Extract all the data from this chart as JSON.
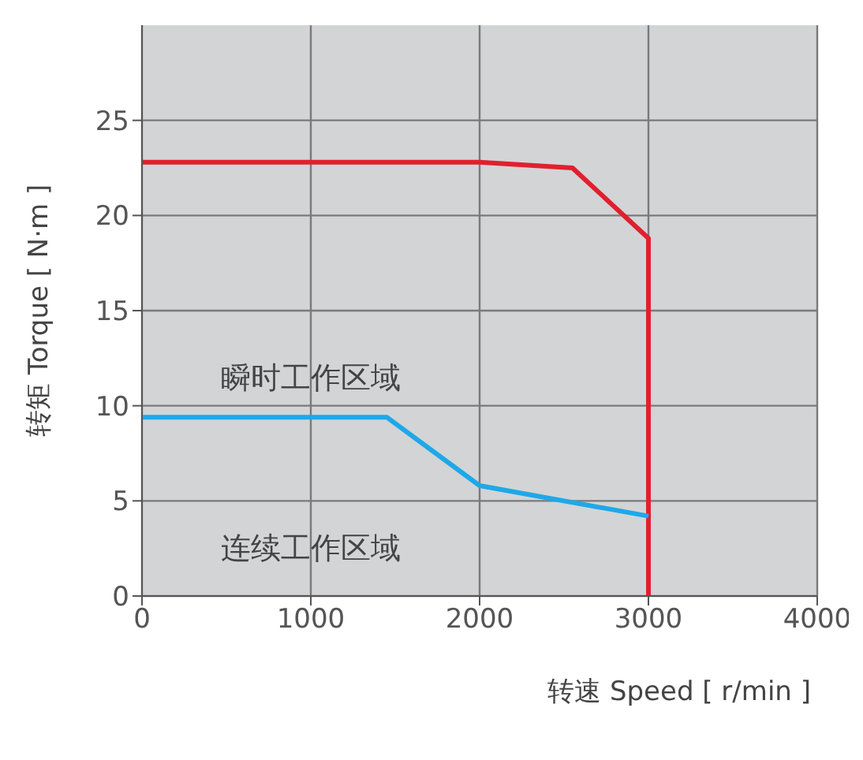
{
  "chart_data": {
    "type": "line",
    "xlabel": "转速  Speed [ r/min ]",
    "ylabel": "转矩  Torque [ N·m ]",
    "xlim": [
      0,
      4000
    ],
    "xticks": [
      0,
      1000,
      2000,
      3000,
      4000
    ],
    "ylim": [
      0,
      30
    ],
    "yticks": [
      0,
      5,
      10,
      15,
      20,
      25
    ],
    "grid": true,
    "marker": "none",
    "line_style": "solid",
    "series": [
      {
        "color": "#e0202e",
        "x": [
          0,
          2000,
          2550,
          3000,
          3000
        ],
        "values": [
          22.8,
          22.8,
          22.5,
          18.8,
          0
        ]
      },
      {
        "color": "#1ea8e8",
        "x": [
          0,
          1450,
          2000,
          3000
        ],
        "values": [
          9.4,
          9.4,
          5.8,
          4.2
        ]
      }
    ],
    "annotations": [
      "瞬时工作区域",
      "连续工作区域"
    ]
  }
}
